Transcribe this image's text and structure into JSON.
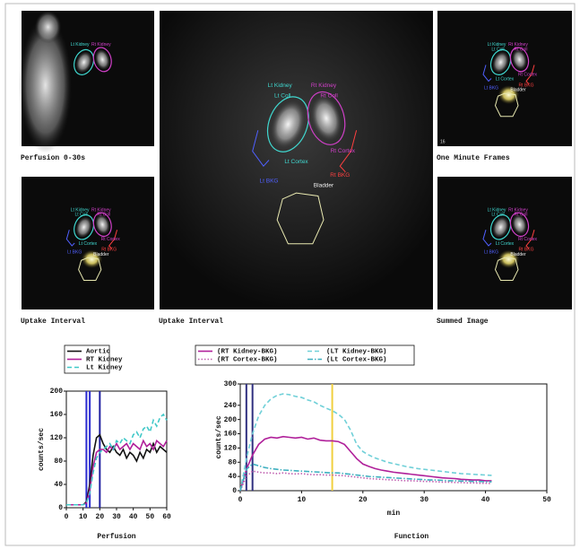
{
  "images": [
    {
      "caption": "Perfusion 0-30s",
      "labels": [
        "Lt Kidney",
        "Rt Kidney"
      ]
    },
    {
      "caption": "Uptake Interval",
      "labels": [
        "Lt Kidney",
        "Rt Kidney",
        "Lt Coll",
        "Rt Coll",
        "Lt Cortex",
        "Rt Cortex",
        "Lt BKG",
        "Rt BKG",
        "Bladder"
      ]
    },
    {
      "caption": "One Minute Frames",
      "frame_number": "16",
      "labels": [
        "Lt Kidney",
        "Rt Kidney",
        "Lt Coll",
        "Rt Coll",
        "Lt Cortex",
        "Rt Cortex",
        "Lt BKG",
        "Rt BKG",
        "Bladder"
      ]
    },
    {
      "caption": "Uptake Interval",
      "labels": [
        "Lt Kidney",
        "Rt Kidney",
        "Lt Coll",
        "Rt Coll",
        "Lt Cortex",
        "Rt Cortex",
        "Lt BKG",
        "Rt BKG",
        "Bladder"
      ]
    },
    {
      "caption": "Summed Image",
      "labels": [
        "Lt Kidney",
        "Rt Kidney",
        "Lt Coll",
        "Rt Coll",
        "Lt Cortex",
        "Rt Cortex",
        "Lt BKG",
        "Rt BKG",
        "Bladder"
      ]
    }
  ],
  "chart_data": [
    {
      "type": "line",
      "y_label": "counts/sec",
      "x_label": "Perfusion",
      "x": [
        0,
        2,
        4,
        6,
        8,
        10,
        12,
        14,
        16,
        18,
        20,
        22,
        24,
        26,
        28,
        30,
        32,
        34,
        36,
        38,
        40,
        42,
        44,
        46,
        48,
        50,
        52,
        54,
        56,
        58,
        60
      ],
      "series": [
        {
          "name": "Aortic",
          "color": "#111111",
          "dash": "solid",
          "values": [
            5,
            5,
            5,
            5,
            5,
            5,
            10,
            40,
            90,
            120,
            125,
            110,
            100,
            95,
            105,
            95,
            90,
            100,
            85,
            95,
            90,
            80,
            95,
            85,
            100,
            95,
            110,
            95,
            105,
            100,
            95
          ]
        },
        {
          "name": "RT Kidney",
          "color": "#b0209a",
          "dash": "solid",
          "values": [
            5,
            5,
            5,
            5,
            5,
            5,
            8,
            30,
            70,
            95,
            100,
            100,
            95,
            105,
            100,
            110,
            100,
            105,
            110,
            100,
            110,
            105,
            100,
            115,
            105,
            110,
            100,
            115,
            110,
            105,
            115
          ]
        },
        {
          "name": "Lt Kidney",
          "color": "#40c8c8",
          "dash": "dashed",
          "values": [
            5,
            5,
            5,
            5,
            5,
            5,
            8,
            25,
            60,
            85,
            95,
            100,
            105,
            110,
            100,
            115,
            110,
            120,
            115,
            110,
            125,
            130,
            120,
            135,
            140,
            130,
            150,
            140,
            155,
            160,
            150
          ]
        }
      ],
      "vlines": [
        {
          "x": 12,
          "color": "#2b2bd0"
        },
        {
          "x": 14,
          "color": "#2b2bd0"
        },
        {
          "x": 20,
          "color": "#2020a0"
        }
      ],
      "xlim": [
        0,
        60
      ],
      "xticks": [
        0,
        10,
        20,
        30,
        40,
        50,
        60
      ],
      "ylim": [
        0,
        200
      ],
      "yticks": [
        0,
        40,
        80,
        120,
        160,
        200
      ]
    },
    {
      "type": "line",
      "y_label": "counts/sec",
      "x_label": "min",
      "title": "Function",
      "x": [
        0,
        1,
        2,
        3,
        4,
        5,
        6,
        7,
        8,
        9,
        10,
        11,
        12,
        13,
        14,
        15,
        16,
        17,
        18,
        19,
        20,
        21,
        22,
        23,
        24,
        25,
        26,
        27,
        28,
        29,
        30,
        31,
        32,
        33,
        34,
        35,
        36,
        37,
        38,
        39,
        40,
        41
      ],
      "series": [
        {
          "name": "(RT Kidney-BKG)",
          "color": "#b0209a",
          "dash": "solid",
          "values": [
            0,
            60,
            100,
            130,
            145,
            150,
            148,
            152,
            150,
            148,
            150,
            145,
            148,
            142,
            140,
            140,
            138,
            130,
            110,
            90,
            75,
            68,
            62,
            58,
            55,
            52,
            50,
            48,
            46,
            44,
            42,
            40,
            38,
            36,
            35,
            34,
            32,
            31,
            30,
            30,
            28,
            28
          ]
        },
        {
          "name": "(RT Cortex-BKG)",
          "color": "#c060b0",
          "dash": "dotted",
          "values": [
            0,
            40,
            55,
            52,
            50,
            50,
            48,
            50,
            48,
            47,
            48,
            46,
            45,
            45,
            44,
            44,
            43,
            42,
            40,
            38,
            36,
            34,
            33,
            32,
            31,
            30,
            29,
            28,
            28,
            27,
            26,
            26,
            25,
            24,
            24,
            23,
            23,
            22,
            22,
            21,
            21,
            20
          ]
        },
        {
          "name": "(LT Kidney-BKG)",
          "color": "#70d0d8",
          "dash": "dashed",
          "values": [
            0,
            90,
            160,
            210,
            240,
            258,
            268,
            272,
            270,
            265,
            262,
            255,
            250,
            240,
            232,
            225,
            215,
            200,
            170,
            130,
            110,
            100,
            92,
            86,
            80,
            76,
            72,
            68,
            65,
            62,
            60,
            58,
            56,
            54,
            52,
            50,
            48,
            47,
            46,
            45,
            44,
            43
          ]
        },
        {
          "name": "(Lt Cortex-BKG)",
          "color": "#40b0c0",
          "dash": "dashdot",
          "values": [
            0,
            60,
            75,
            70,
            65,
            62,
            60,
            58,
            57,
            56,
            55,
            54,
            53,
            52,
            51,
            50,
            50,
            48,
            46,
            44,
            42,
            40,
            39,
            38,
            37,
            36,
            35,
            34,
            33,
            32,
            31,
            30,
            30,
            29,
            28,
            28,
            27,
            27,
            26,
            26,
            25,
            25
          ]
        }
      ],
      "vlines": [
        {
          "x": 1,
          "color": "#303080"
        },
        {
          "x": 2,
          "color": "#303080"
        },
        {
          "x": 15,
          "color": "#f0d040"
        }
      ],
      "xlim": [
        0,
        50
      ],
      "xticks": [
        0,
        10,
        20,
        30,
        40,
        50
      ],
      "ylim": [
        0,
        300
      ],
      "yticks": [
        0,
        40,
        80,
        120,
        160,
        200,
        240,
        300
      ]
    }
  ]
}
